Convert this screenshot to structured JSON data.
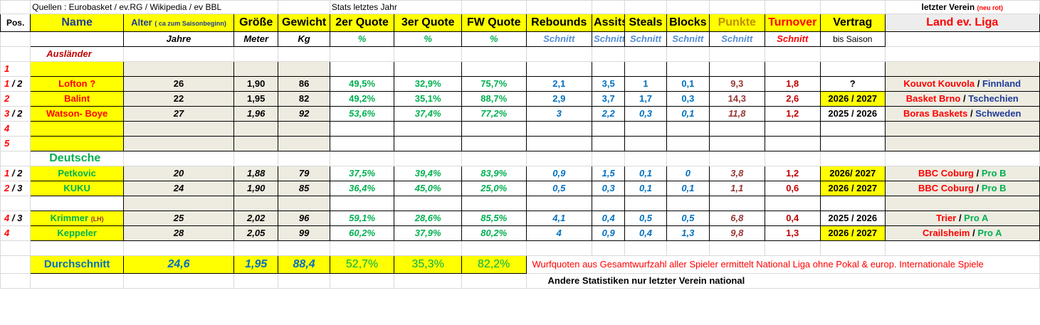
{
  "top": {
    "sources": "Quellen : Eurobasket / ev.RG / Wikipedia / ev BBL",
    "stats_label": "Stats letztes Jahr",
    "last_club": "letzter Verein",
    "last_club_note": "(neu rot)"
  },
  "headers": {
    "pos": "Pos.",
    "name": "Name",
    "age": "Alter",
    "age_note": "( ca zum Saisonbeginn)",
    "height": "Größe",
    "weight": "Gewicht",
    "q2": "2er Quote",
    "q3": "3er Quote",
    "fw": "FW Quote",
    "reb": "Rebounds",
    "ast": "Assits",
    "stl": "Steals",
    "blk": "Blocks",
    "pts": "Punkte",
    "to": "Turnover",
    "contract": "Vertrag",
    "league": "Land ev. Liga"
  },
  "units": {
    "age": "Jahre",
    "height": "Meter",
    "weight": "Kg",
    "q2": "%",
    "q3": "%",
    "fw": "%",
    "reb": "Schnitt",
    "ast": "Schnitt",
    "stl": "Schnitt",
    "blk": "Schnitt",
    "pts": "Schnitt",
    "to": "Schnitt",
    "contract": "bis Saison"
  },
  "sections": {
    "foreign": "Ausländer",
    "german": "Deutsche"
  },
  "foreign_rows": [
    {
      "pos_a": "1",
      "pos_sep": "",
      "pos_b": "",
      "name": "",
      "name_note": "",
      "age": "",
      "height": "",
      "weight": "",
      "q2": "",
      "q3": "",
      "fw": "",
      "reb": "",
      "ast": "",
      "stl": "",
      "blk": "",
      "pts": "",
      "to": "",
      "contract": "",
      "club": "",
      "sep": "",
      "country": ""
    },
    {
      "pos_a": "1",
      "pos_sep": " / ",
      "pos_b": "2",
      "name": "Lofton ?",
      "name_note": "",
      "age": "26",
      "height": "1,90",
      "weight": "86",
      "q2": "49,5%",
      "q3": "32,9%",
      "fw": "75,7%",
      "reb": "2,1",
      "ast": "3,5",
      "stl": "1",
      "blk": "0,1",
      "pts": "9,3",
      "to": "1,8",
      "contract": "?",
      "club": "Kouvot Kouvola",
      "sep": " / ",
      "country": "Finnland"
    },
    {
      "pos_a": "2",
      "pos_sep": "",
      "pos_b": "",
      "name": "Balint",
      "name_note": "",
      "age": "22",
      "height": "1,95",
      "weight": "82",
      "q2": "49,2%",
      "q3": "35,1%",
      "fw": "88,7%",
      "reb": "2,9",
      "ast": "3,7",
      "stl": "1,7",
      "blk": "0,3",
      "pts": "14,3",
      "to": "2,6",
      "contract": "2026 / 2027",
      "club": "Basket Brno",
      "sep": " / ",
      "country": "Tschechien"
    },
    {
      "pos_a": "3",
      "pos_sep": " / ",
      "pos_b": "2",
      "name": "Watson- Boye",
      "name_note": "",
      "age": "27",
      "height": "1,96",
      "weight": "92",
      "q2": "53,6%",
      "q3": "37,4%",
      "fw": "77,2%",
      "reb": "3",
      "ast": "2,2",
      "stl": "0,3",
      "blk": "0,1",
      "pts": "11,8",
      "to": "1,2",
      "contract": "2025 / 2026",
      "club": "Boras Baskets",
      "sep": " / ",
      "country": "Schweden"
    },
    {
      "pos_a": "4",
      "pos_sep": "",
      "pos_b": "",
      "name": "",
      "name_note": "",
      "age": "",
      "height": "",
      "weight": "",
      "q2": "",
      "q3": "",
      "fw": "",
      "reb": "",
      "ast": "",
      "stl": "",
      "blk": "",
      "pts": "",
      "to": "",
      "contract": "",
      "club": "",
      "sep": "",
      "country": ""
    },
    {
      "pos_a": "5",
      "pos_sep": "",
      "pos_b": "",
      "name": "",
      "name_note": "",
      "age": "",
      "height": "",
      "weight": "",
      "q2": "",
      "q3": "",
      "fw": "",
      "reb": "",
      "ast": "",
      "stl": "",
      "blk": "",
      "pts": "",
      "to": "",
      "contract": "",
      "club": "",
      "sep": "",
      "country": ""
    }
  ],
  "german_rows": [
    {
      "pos_a": "1",
      "pos_sep": " / ",
      "pos_b": "2",
      "name": "Petkovic",
      "name_note": "",
      "age": "20",
      "height": "1,88",
      "weight": "79",
      "q2": "37,5%",
      "q3": "39,4%",
      "fw": "83,9%",
      "reb": "0,9",
      "ast": "1,5",
      "stl": "0,1",
      "blk": "0",
      "pts": "3,8",
      "to": "1,2",
      "contract": "2026/ 2027",
      "club": "BBC Coburg",
      "sep": " / ",
      "country": "Pro B"
    },
    {
      "pos_a": "2",
      "pos_sep": " / ",
      "pos_b": "3",
      "name": "KUKU",
      "name_note": "",
      "age": "24",
      "height": "1,90",
      "weight": "85",
      "q2": "36,4%",
      "q3": "45,0%",
      "fw": "25,0%",
      "reb": "0,5",
      "ast": "0,3",
      "stl": "0,1",
      "blk": "0,1",
      "pts": "1,1",
      "to": "0,6",
      "contract": "2026 / 2027",
      "club": "BBC Coburg",
      "sep": " / ",
      "country": "Pro B"
    },
    {
      "pos_a": "",
      "pos_sep": "",
      "pos_b": "",
      "name": "",
      "name_note": "",
      "age": "",
      "height": "",
      "weight": "",
      "q2": "",
      "q3": "",
      "fw": "",
      "reb": "",
      "ast": "",
      "stl": "",
      "blk": "",
      "pts": "",
      "to": "",
      "contract": "",
      "club": "",
      "sep": "",
      "country": ""
    },
    {
      "pos_a": "4",
      "pos_sep": " / ",
      "pos_b": "3",
      "name": "Krimmer",
      "name_note": "(LH)",
      "age": "25",
      "height": "2,02",
      "weight": "96",
      "q2": "59,1%",
      "q3": "28,6%",
      "fw": "85,5%",
      "reb": "4,1",
      "ast": "0,4",
      "stl": "0,5",
      "blk": "0,5",
      "pts": "6,8",
      "to": "0,4",
      "contract": "2025 / 2026",
      "club": "Trier",
      "sep": " / ",
      "country": "Pro A"
    },
    {
      "pos_a": "4",
      "pos_sep": "",
      "pos_b": "",
      "name": "Keppeler",
      "name_note": "",
      "age": "28",
      "height": "2,05",
      "weight": "99",
      "q2": "60,2%",
      "q3": "37,9%",
      "fw": "80,2%",
      "reb": "4",
      "ast": "0,9",
      "stl": "0,4",
      "blk": "1,3",
      "pts": "9,8",
      "to": "1,3",
      "contract": "2026 / 2027",
      "club": "Crailsheim",
      "sep": " / ",
      "country": "Pro A"
    }
  ],
  "average": {
    "label": "Durchschnitt",
    "age": "24,6",
    "height": "1,95",
    "weight": "88,4",
    "q2": "52,7%",
    "q3": "35,3%",
    "fw": "82,2%"
  },
  "notes": {
    "line1": "Wurfquoten aus Gesamtwurfzahl  aller Spieler ermittelt National Liga ohne Pokal & europ. Internationale Spiele",
    "line2": "Andere Statistiken nur letzter Verein national"
  }
}
